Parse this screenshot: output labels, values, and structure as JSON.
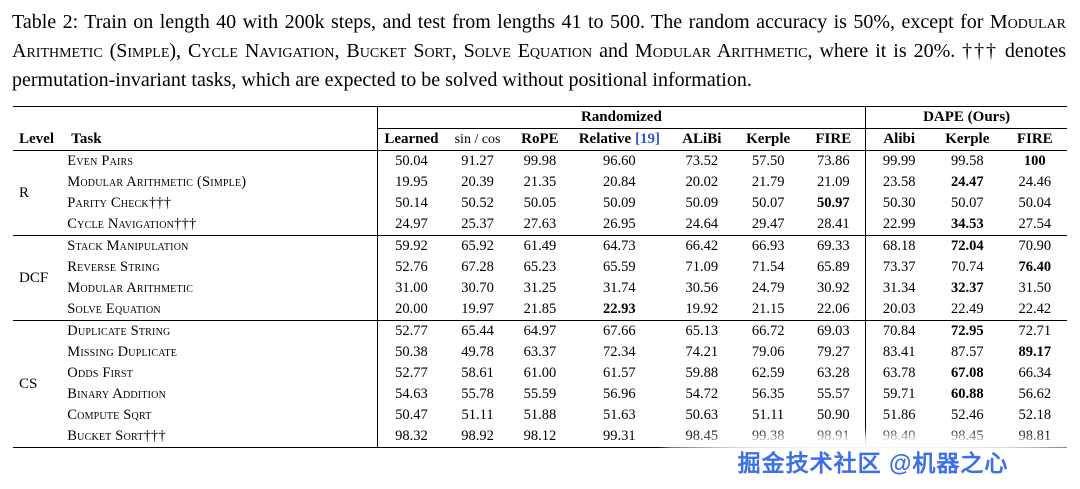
{
  "colors": {
    "citation": "#2e5bd7",
    "watermark_text": "#3d6fe8"
  },
  "caption": {
    "segments": [
      {
        "text": "Table 2: Train on length 40 with 200k steps, and test from lengths 41 to 500. The random accuracy is 50%, except for "
      },
      {
        "text": "Modular Arithmetic (Simple)",
        "smallcaps": true
      },
      {
        "text": ", "
      },
      {
        "text": "Cycle Navigation",
        "smallcaps": true
      },
      {
        "text": ", "
      },
      {
        "text": "Bucket Sort",
        "smallcaps": true
      },
      {
        "text": ", "
      },
      {
        "text": "Solve Equation",
        "smallcaps": true
      },
      {
        "text": " and "
      },
      {
        "text": "Modular Arithmetic",
        "smallcaps": true
      },
      {
        "text": ", where it is 20%. ††† denotes permutation-invariant tasks, which are expected to be solved without positional information."
      }
    ]
  },
  "table": {
    "level_header": "Level",
    "task_header": "Task",
    "group_headers": [
      {
        "label": "Randomized",
        "span": 7
      },
      {
        "label": "DAPE (Ours)",
        "span": 3
      }
    ],
    "columns": [
      {
        "label": "Learned",
        "bold": true,
        "sep": true
      },
      {
        "label": "sin / cos",
        "bold": false
      },
      {
        "label": "RoPE",
        "bold": true
      },
      {
        "label": "Relative",
        "cite": "[19]",
        "bold": true
      },
      {
        "label": "ALiBi",
        "bold": true
      },
      {
        "label": "Kerple",
        "bold": true
      },
      {
        "label": "FIRE",
        "bold": true
      },
      {
        "label": "Alibi",
        "bold": true,
        "sep": true
      },
      {
        "label": "Kerple",
        "bold": true
      },
      {
        "label": "FIRE",
        "bold": true
      }
    ],
    "groups": [
      {
        "level": "R",
        "rows": [
          {
            "task": "Even Pairs",
            "values": [
              "50.04",
              "91.27",
              "99.98",
              "96.60",
              "73.52",
              "57.50",
              "73.86",
              "99.99",
              "99.58",
              "100"
            ],
            "bold": 9
          },
          {
            "task": "Modular Arithmetic (Simple)",
            "values": [
              "19.95",
              "20.39",
              "21.35",
              "20.84",
              "20.02",
              "21.79",
              "21.09",
              "23.58",
              "24.47",
              "24.46"
            ],
            "bold": 8
          },
          {
            "task": "Parity Check†††",
            "values": [
              "50.14",
              "50.52",
              "50.05",
              "50.09",
              "50.09",
              "50.07",
              "50.97",
              "50.30",
              "50.07",
              "50.04"
            ],
            "bold": 6
          },
          {
            "task": "Cycle Navigation†††",
            "values": [
              "24.97",
              "25.37",
              "27.63",
              "26.95",
              "24.64",
              "29.47",
              "28.41",
              "22.99",
              "34.53",
              "27.54"
            ],
            "bold": 8
          }
        ]
      },
      {
        "level": "DCF",
        "rows": [
          {
            "task": "Stack Manipulation",
            "values": [
              "59.92",
              "65.92",
              "61.49",
              "64.73",
              "66.42",
              "66.93",
              "69.33",
              "68.18",
              "72.04",
              "70.90"
            ],
            "bold": 8
          },
          {
            "task": "Reverse String",
            "values": [
              "52.76",
              "67.28",
              "65.23",
              "65.59",
              "71.09",
              "71.54",
              "65.89",
              "73.37",
              "70.74",
              "76.40"
            ],
            "bold": 9
          },
          {
            "task": "Modular Arithmetic",
            "values": [
              "31.00",
              "30.70",
              "31.25",
              "31.74",
              "30.56",
              "24.79",
              "30.92",
              "31.34",
              "32.37",
              "31.50"
            ],
            "bold": 8
          },
          {
            "task": "Solve Equation",
            "values": [
              "20.00",
              "19.97",
              "21.85",
              "22.93",
              "19.92",
              "21.15",
              "22.06",
              "20.03",
              "22.49",
              "22.42"
            ],
            "bold": 3
          }
        ]
      },
      {
        "level": "CS",
        "rows": [
          {
            "task": "Duplicate String",
            "values": [
              "52.77",
              "65.44",
              "64.97",
              "67.66",
              "65.13",
              "66.72",
              "69.03",
              "70.84",
              "72.95",
              "72.71"
            ],
            "bold": 8
          },
          {
            "task": "Missing Duplicate",
            "values": [
              "50.38",
              "49.78",
              "63.37",
              "72.34",
              "74.21",
              "79.06",
              "79.27",
              "83.41",
              "87.57",
              "89.17"
            ],
            "bold": 9
          },
          {
            "task": "Odds First",
            "values": [
              "52.77",
              "58.61",
              "61.00",
              "61.57",
              "59.88",
              "62.59",
              "63.28",
              "63.78",
              "67.08",
              "66.34"
            ],
            "bold": 8
          },
          {
            "task": "Binary Addition",
            "values": [
              "54.63",
              "55.78",
              "55.59",
              "56.96",
              "54.72",
              "56.35",
              "55.57",
              "59.71",
              "60.88",
              "56.62"
            ],
            "bold": 8
          },
          {
            "task": "Compute Sqrt",
            "values": [
              "50.47",
              "51.11",
              "51.88",
              "51.63",
              "50.63",
              "51.11",
              "50.90",
              "51.86",
              "52.46",
              "52.18"
            ],
            "bold": -1
          },
          {
            "task": "Bucket Sort†††",
            "values": [
              "98.32",
              "98.92",
              "98.12",
              "99.31",
              "98.45",
              "99.38",
              "98.91",
              "98.40",
              "98.45",
              "98.81"
            ],
            "bold": -1
          }
        ]
      }
    ]
  },
  "watermark": {
    "text": "掘金技术社区 @机器之心"
  }
}
